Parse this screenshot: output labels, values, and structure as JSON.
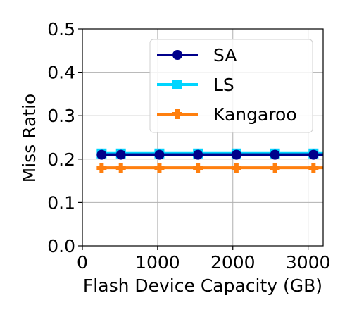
{
  "chart_data": {
    "type": "line",
    "title": "",
    "xlabel": "Flash Device Capacity (GB)",
    "ylabel": "Miss Ratio",
    "xlim": [
      0,
      3200
    ],
    "ylim": [
      0,
      0.5
    ],
    "x_ticks": [
      0,
      1000,
      2000,
      3000
    ],
    "y_ticks": [
      0.0,
      0.1,
      0.2,
      0.3,
      0.4,
      0.5
    ],
    "x_tick_labels": [
      "0",
      "1000",
      "2000",
      "3000"
    ],
    "y_tick_labels": [
      "0.0",
      "0.1",
      "0.2",
      "0.3",
      "0.4",
      "0.5"
    ],
    "grid": true,
    "legend_position": "top-right",
    "x": [
      256,
      512,
      1024,
      1536,
      2048,
      2560,
      3072
    ],
    "series": [
      {
        "name": "SA",
        "values": [
          0.21,
          0.21,
          0.21,
          0.21,
          0.21,
          0.21,
          0.21
        ],
        "color": "#00008b",
        "marker": "circle"
      },
      {
        "name": "LS",
        "values": [
          0.213,
          0.213,
          0.213,
          0.213,
          0.213,
          0.213,
          0.213
        ],
        "color": "#00d5ff",
        "marker": "square"
      },
      {
        "name": "Kangaroo",
        "values": [
          0.18,
          0.18,
          0.18,
          0.18,
          0.18,
          0.18,
          0.18
        ],
        "color": "#ff7f0e",
        "marker": "plus-filled"
      }
    ]
  }
}
